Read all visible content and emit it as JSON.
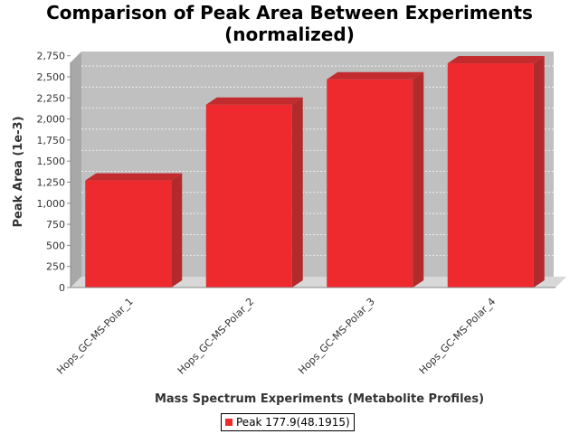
{
  "chart_data": {
    "type": "bar",
    "title_lines": [
      "Comparison of Peak Area Between Experiments",
      "(normalized)"
    ],
    "xlabel": "Mass Spectrum Experiments (Metabolite Profiles)",
    "ylabel": "Peak Area (1e-3)",
    "categories": [
      "Hops_GC-MS-Polar_1",
      "Hops_GC-MS-Polar_2",
      "Hops_GC-MS-Polar_3",
      "Hops_GC-MS-Polar_4"
    ],
    "series": [
      {
        "name": "Peak 177.9(48.1915)",
        "values": [
          1270,
          2170,
          2470,
          2660
        ],
        "color": "#ee2a2e"
      }
    ],
    "ylim": [
      0,
      2800
    ],
    "yticks": [
      0,
      250,
      500,
      750,
      1000,
      1250,
      1500,
      1750,
      2000,
      2250,
      2500,
      2750
    ],
    "ytick_labels": [
      "0",
      "250",
      "500",
      "750",
      "1,000",
      "1,250",
      "1,500",
      "1,750",
      "2,000",
      "2,250",
      "2,500",
      "2,750"
    ],
    "grid": true,
    "legend_position": "bottom-center",
    "plot_background": "#c0c0c0"
  }
}
